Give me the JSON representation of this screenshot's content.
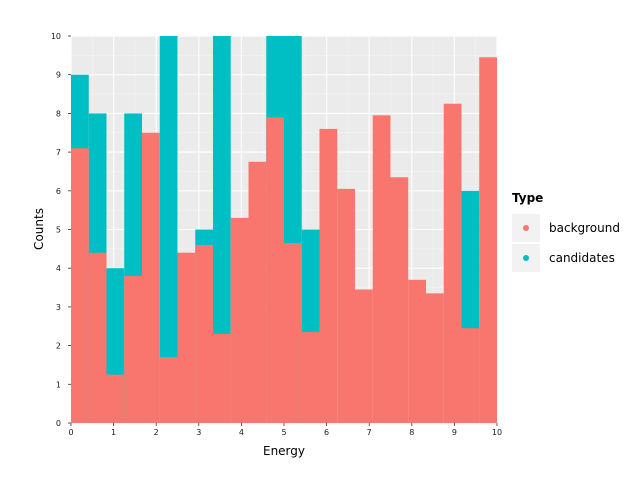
{
  "chart_data": {
    "type": "bar",
    "xlabel": "Energy",
    "ylabel": "Counts",
    "xlim": [
      0,
      10
    ],
    "ylim": [
      0,
      10
    ],
    "x_ticks": [
      "0",
      "1",
      "2",
      "3",
      "4",
      "5",
      "6",
      "7",
      "8",
      "9",
      "10"
    ],
    "y_ticks": [
      "0",
      "1",
      "2",
      "3",
      "4",
      "5",
      "6",
      "7",
      "8",
      "9",
      "10"
    ],
    "grid": true,
    "bin_edges": [
      0,
      0.4167,
      0.8333,
      1.25,
      1.6667,
      2.0833,
      2.5,
      2.9167,
      3.3333,
      3.75,
      4.1667,
      4.5833,
      5.0,
      5.4167,
      5.8333,
      6.25,
      6.6667,
      7.0833,
      7.5,
      7.9167,
      8.3333,
      8.75,
      9.1667,
      9.5833,
      10
    ],
    "series": [
      {
        "name": "background",
        "color": "#F8766D",
        "values": [
          7.1,
          4.4,
          1.25,
          3.8,
          7.5,
          1.7,
          4.4,
          4.6,
          2.3,
          5.3,
          6.75,
          7.9,
          4.65,
          2.35,
          7.6,
          6.05,
          3.45,
          7.95,
          6.35,
          3.7,
          3.35,
          8.25,
          2.45,
          9.45
        ]
      },
      {
        "name": "candidates",
        "color": "#00BFC4",
        "values": [
          9.0,
          8.0,
          4.0,
          8.0,
          0,
          10.0,
          0,
          5.0,
          10.0,
          0,
          0,
          10.0,
          10.0,
          5.0,
          0,
          0,
          0,
          0,
          0,
          0,
          0,
          0,
          6.0,
          0
        ]
      }
    ],
    "legend": {
      "title": "Type",
      "placement": "right",
      "items": [
        "background",
        "candidates"
      ]
    }
  }
}
